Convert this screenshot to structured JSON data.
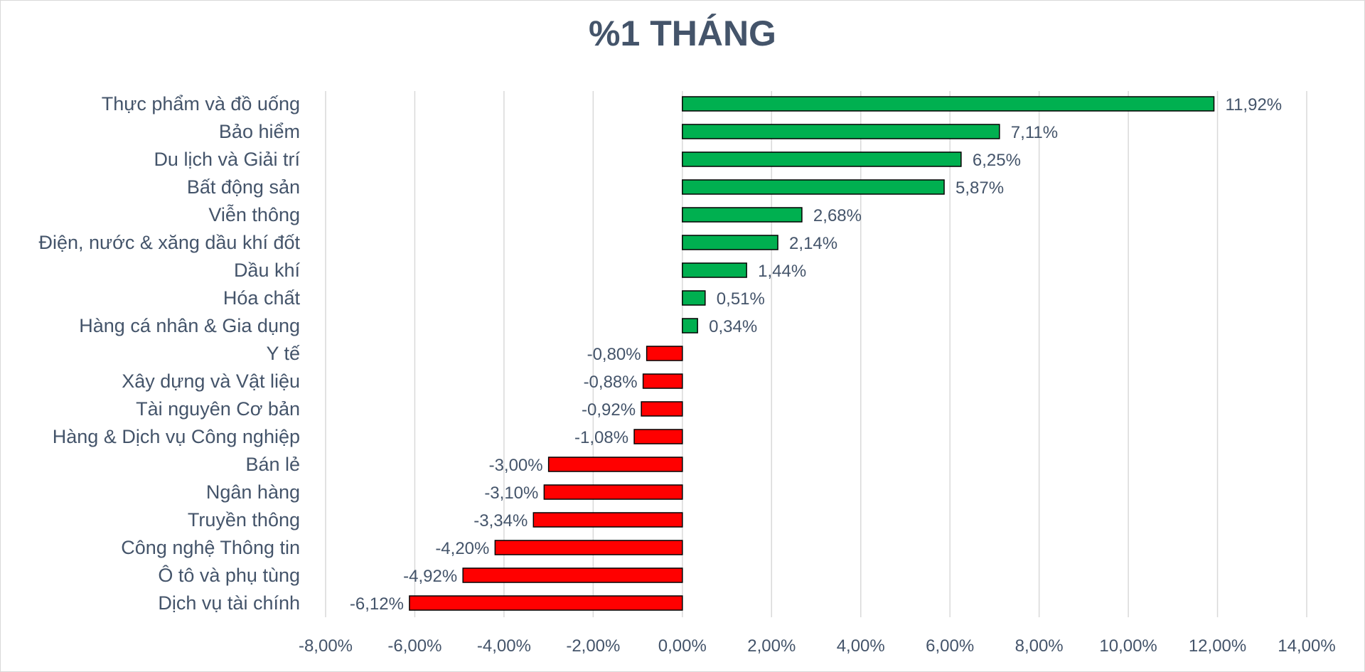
{
  "chart_data": {
    "type": "bar",
    "orientation": "horizontal",
    "title": "%1 THÁNG",
    "xlabel": "",
    "ylabel": "",
    "xlim": [
      -8,
      14
    ],
    "xticks": [
      -8,
      -6,
      -4,
      -2,
      0,
      2,
      4,
      6,
      8,
      10,
      12,
      14
    ],
    "tick_labels": [
      "-8,00%",
      "-6,00%",
      "-4,00%",
      "-2,00%",
      "0,00%",
      "2,00%",
      "4,00%",
      "6,00%",
      "8,00%",
      "10,00%",
      "12,00%",
      "14,00%"
    ],
    "grid": "vertical",
    "legend": "none",
    "categories": [
      "Thực phẩm và đồ uống",
      "Bảo hiểm",
      "Du lịch và Giải trí",
      "Bất động sản",
      "Viễn thông",
      "Điện, nước & xăng dầu khí đốt",
      "Dầu khí",
      "Hóa chất",
      "Hàng cá nhân & Gia dụng",
      "Y tế",
      "Xây dựng và Vật liệu",
      "Tài nguyên Cơ bản",
      "Hàng & Dịch vụ Công nghiệp",
      "Bán lẻ",
      "Ngân hàng",
      "Truyền thông",
      "Công nghệ Thông tin",
      "Ô tô và phụ tùng",
      "Dịch vụ tài chính"
    ],
    "values": [
      11.92,
      7.11,
      6.25,
      5.87,
      2.68,
      2.14,
      1.44,
      0.51,
      0.34,
      -0.8,
      -0.88,
      -0.92,
      -1.08,
      -3.0,
      -3.1,
      -3.34,
      -4.2,
      -4.92,
      -6.12
    ],
    "value_labels": [
      "11,92%",
      "7,11%",
      "6,25%",
      "5,87%",
      "2,68%",
      "2,14%",
      "1,44%",
      "0,51%",
      "0,34%",
      "-0,80%",
      "-0,88%",
      "-0,92%",
      "-1,08%",
      "-3,00%",
      "-3,10%",
      "-3,34%",
      "-4,20%",
      "-4,92%",
      "-6,12%"
    ],
    "colors": {
      "positive": "#00b050",
      "negative": "#ff0000",
      "bar_border": "#000000",
      "text": "#44546a",
      "grid": "#d9d9d9"
    }
  }
}
